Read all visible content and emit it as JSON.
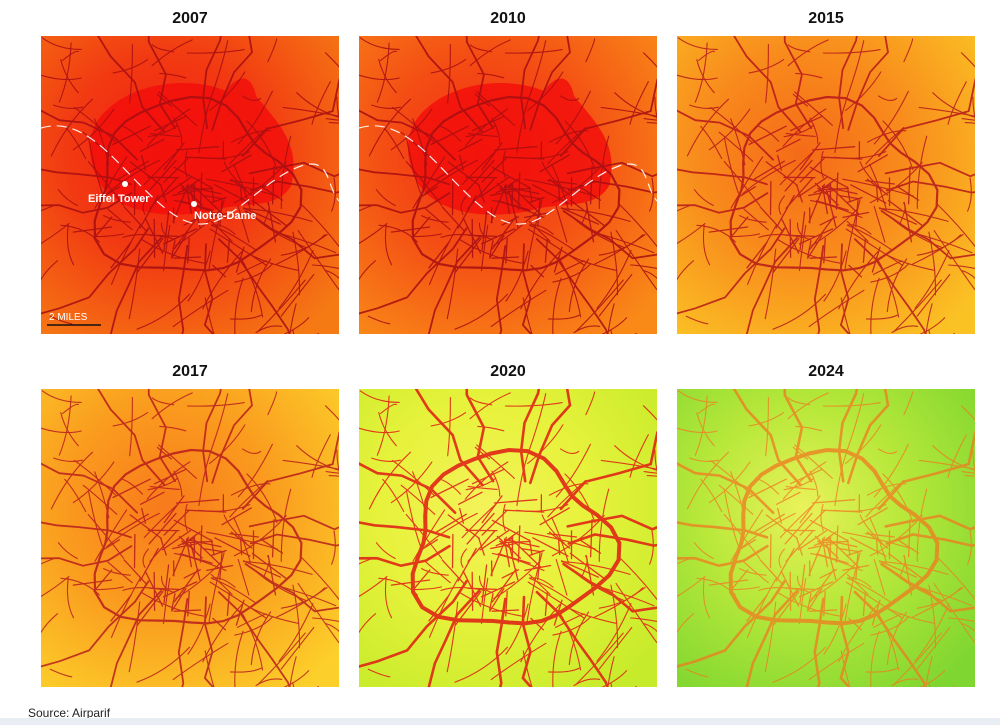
{
  "panels": [
    {
      "year": "2007",
      "colors": {
        "center": "#f41c10",
        "mid": "#f23a12",
        "edge": "#f57a14"
      },
      "road": "#a80d12",
      "road_opacity": 0.85,
      "hot_core": true
    },
    {
      "year": "2010",
      "colors": {
        "center": "#f52a12",
        "mid": "#f44e14",
        "edge": "#f98a18"
      },
      "road": "#a80d12",
      "road_opacity": 0.85,
      "hot_core": true
    },
    {
      "year": "2015",
      "colors": {
        "center": "#f56a18",
        "mid": "#f88a1c",
        "edge": "#fbc224"
      },
      "road": "#b3101a",
      "road_opacity": 0.8,
      "hot_core": false
    },
    {
      "year": "2017",
      "colors": {
        "center": "#f87a1c",
        "mid": "#fa9a1e",
        "edge": "#fccf2a"
      },
      "road": "#b5141c",
      "road_opacity": 0.8,
      "hot_core": false
    },
    {
      "year": "2020",
      "colors": {
        "center": "#f4f25a",
        "mid": "#e8f23c",
        "edge": "#c6eb2a"
      },
      "road": "#e01a14",
      "road_opacity": 0.85,
      "hot_core": false
    },
    {
      "year": "2024",
      "colors": {
        "center": "#eaf25a",
        "mid": "#b8e83a",
        "edge": "#7fd630"
      },
      "road": "#f07a20",
      "road_opacity": 0.75,
      "hot_core": false
    }
  ],
  "labels": {
    "eiffel_tower": "Eiffel Tower",
    "notre_dame": "Notre-Dame",
    "scale": "2 MILES"
  },
  "source": "Source: Airparif"
}
